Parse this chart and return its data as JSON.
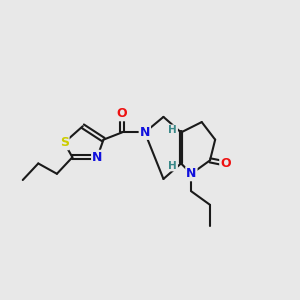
{
  "bg_color": "#e8e8e8",
  "bond_color": "#1a1a1a",
  "lw": 1.5,
  "atom_colors": {
    "O": "#ee1111",
    "N": "#1111dd",
    "S": "#cccc00",
    "H": "#3a8888",
    "C": "#1a1a1a"
  },
  "figsize": [
    3.0,
    3.0
  ],
  "dpi": 100,
  "xlim": [
    10,
    300
  ],
  "ylim": [
    55,
    275
  ]
}
